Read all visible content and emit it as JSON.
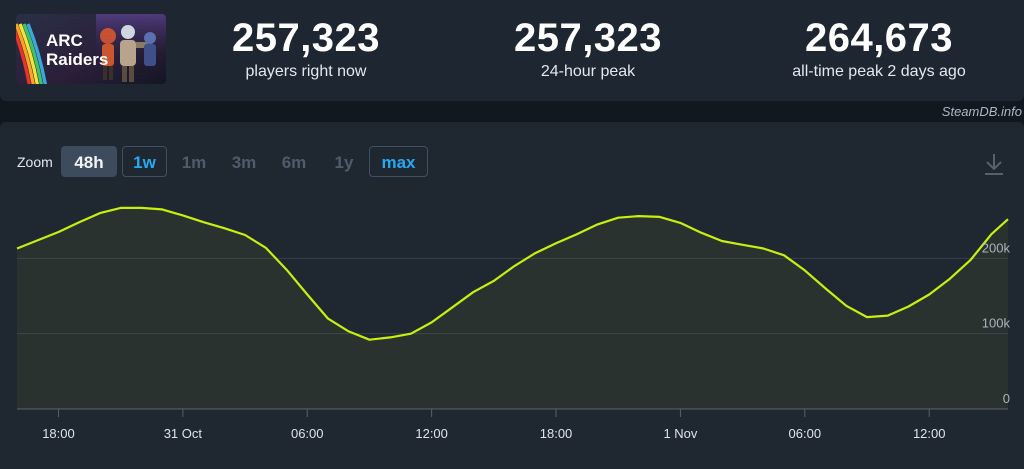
{
  "game": {
    "logo_text_line1": "ARC",
    "logo_text_line2": "Raiders"
  },
  "stats": [
    {
      "value": "257,323",
      "label": "players right now"
    },
    {
      "value": "257,323",
      "label": "24-hour peak"
    },
    {
      "value": "264,673",
      "label": "all-time peak 2 days ago"
    }
  ],
  "credit": "SteamDB.info",
  "zoom": {
    "label": "Zoom",
    "options": [
      "48h",
      "1w",
      "1m",
      "3m",
      "6m",
      "1y",
      "max"
    ],
    "selected": "48h",
    "available": [
      "1w",
      "max"
    ]
  },
  "icons": {
    "download": "download-icon"
  },
  "colors": {
    "line": "#c6f00e",
    "accent": "#26a9f0",
    "panel": "#1f2731"
  },
  "chart_data": {
    "type": "area",
    "x_tick_labels": [
      "18:00",
      "31 Oct",
      "06:00",
      "12:00",
      "18:00",
      "1 Nov",
      "06:00",
      "12:00"
    ],
    "x_tick_hours": [
      0,
      6,
      12,
      18,
      24,
      30,
      36,
      42
    ],
    "y_tick_labels": [
      "0",
      "100k",
      "200k"
    ],
    "y_tick_values": [
      0,
      100000,
      200000
    ],
    "xlim_hours": [
      -2,
      45.8
    ],
    "ylim": [
      0,
      300000
    ],
    "grid": true,
    "series": [
      {
        "hours": [
          -2,
          0,
          1,
          2,
          3,
          4,
          5,
          6,
          7,
          8,
          9,
          10,
          11,
          12,
          13,
          14,
          15,
          16,
          17,
          18,
          19,
          20,
          21,
          22,
          23,
          24,
          25,
          26,
          27,
          28,
          29,
          30,
          31,
          32,
          33,
          34,
          35,
          36,
          37,
          38,
          39,
          40,
          41,
          42,
          43,
          44,
          45,
          45.8
        ],
        "values": [
          213000,
          235000,
          248000,
          260000,
          267000,
          267000,
          265000,
          257000,
          248000,
          240000,
          231000,
          214000,
          185000,
          152000,
          120000,
          103000,
          92000,
          95000,
          100000,
          115000,
          135000,
          155000,
          170000,
          190000,
          207000,
          220000,
          232000,
          245000,
          254000,
          256000,
          255000,
          247000,
          234000,
          223000,
          218000,
          213000,
          204000,
          184000,
          160000,
          137000,
          122000,
          124000,
          136000,
          152000,
          173000,
          198000,
          232000,
          252000
        ]
      }
    ]
  }
}
